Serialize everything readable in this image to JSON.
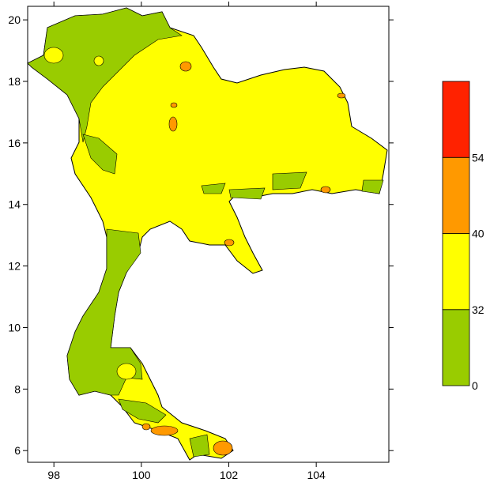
{
  "map": {
    "xlim": [
      97.4,
      105.66
    ],
    "ylim": [
      5.62,
      20.44
    ],
    "xticks": [
      98,
      100,
      102,
      104
    ],
    "yticks": [
      6,
      8,
      10,
      12,
      14,
      16,
      18,
      20
    ]
  },
  "colorbar": {
    "levels": [
      0,
      32,
      40,
      54
    ],
    "colors": [
      "#99cc00",
      "#ffff00",
      "#ff9900",
      "#ff2200"
    ]
  }
}
